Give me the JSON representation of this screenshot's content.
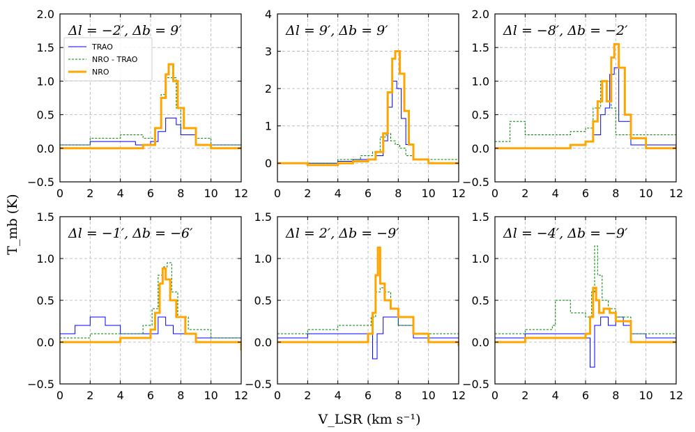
{
  "figure": {
    "ylabel": "T_mb (K)",
    "xlabel": "V_LSR (km s⁻¹)"
  },
  "colors": {
    "TRAO": "#0000ff",
    "NRO - TRAO": "#008000",
    "NRO": "#ffa500",
    "grid": "#b0b0b0"
  },
  "legend": {
    "placement": "upper-left (first panel)",
    "entries": [
      "TRAO",
      "NRO - TRAO",
      "NRO"
    ]
  },
  "chart_data": [
    {
      "type": "line",
      "annotation": "Δl = −2′, Δb = 9′",
      "xlim": [
        0,
        12
      ],
      "ylim": [
        -0.5,
        2.0
      ],
      "xticks": [
        0,
        2,
        4,
        6,
        8,
        10,
        12
      ],
      "yticks": [
        -0.5,
        0.0,
        0.5,
        1.0,
        1.5,
        2.0
      ],
      "ytick_labels": [
        "−0.5",
        "0.0",
        "0.5",
        "1.0",
        "1.5",
        "2.0"
      ],
      "grid": true,
      "series": [
        {
          "name": "TRAO",
          "x": [
            0,
            2,
            4,
            5,
            6,
            6.5,
            7,
            7.3,
            7.7,
            8,
            9,
            10,
            12
          ],
          "y": [
            0.05,
            0.1,
            0.1,
            0.05,
            0.1,
            0.25,
            0.45,
            0.45,
            0.35,
            0.2,
            0.05,
            0.05,
            0.05
          ]
        },
        {
          "name": "NRO - TRAO",
          "x": [
            0,
            2,
            4,
            5.5,
            6.3,
            6.7,
            7,
            7.3,
            7.7,
            8,
            9,
            10,
            12
          ],
          "y": [
            0.05,
            0.15,
            0.2,
            0.15,
            0.3,
            0.8,
            1.05,
            1.05,
            0.6,
            0.3,
            0.15,
            0.05,
            0.05
          ]
        },
        {
          "name": "NRO",
          "x": [
            0,
            2,
            4,
            5.5,
            6.3,
            6.7,
            7,
            7.2,
            7.5,
            7.8,
            8.2,
            9,
            10,
            12
          ],
          "y": [
            0.0,
            0.0,
            0.0,
            0.05,
            0.3,
            0.75,
            1.1,
            1.25,
            1.0,
            0.6,
            0.3,
            0.05,
            0.0,
            0.0
          ]
        }
      ]
    },
    {
      "type": "line",
      "annotation": "Δl = 9′, Δb = 9′",
      "xlim": [
        0,
        12
      ],
      "ylim": [
        -0.5,
        4.0
      ],
      "xticks": [
        0,
        2,
        4,
        6,
        8,
        10,
        12
      ],
      "yticks": [
        0,
        1,
        2,
        3,
        4
      ],
      "ytick_labels": [
        "0",
        "1",
        "2",
        "3",
        "4"
      ],
      "grid": true,
      "series": [
        {
          "name": "TRAO",
          "x": [
            0,
            2,
            4,
            5,
            6,
            6.5,
            7,
            7.3,
            7.6,
            7.9,
            8.2,
            8.5,
            9,
            10,
            12
          ],
          "y": [
            0.0,
            0.0,
            0.05,
            0.1,
            0.1,
            0.2,
            0.6,
            1.5,
            2.2,
            2.0,
            1.2,
            0.5,
            0.1,
            0.0,
            0.0
          ]
        },
        {
          "name": "NRO - TRAO",
          "x": [
            0,
            2,
            4,
            5.5,
            6.3,
            6.8,
            7.2,
            7.5,
            7.8,
            8.1,
            8.5,
            9,
            12
          ],
          "y": [
            0.0,
            0.0,
            0.1,
            0.2,
            0.3,
            0.7,
            0.8,
            0.6,
            0.5,
            0.4,
            0.2,
            0.1,
            0.0
          ]
        },
        {
          "name": "NRO",
          "x": [
            0,
            2,
            4,
            5,
            6,
            6.5,
            7,
            7.3,
            7.6,
            7.8,
            8.1,
            8.4,
            8.7,
            9,
            10,
            12
          ],
          "y": [
            0.0,
            -0.05,
            0.0,
            0.05,
            0.1,
            0.3,
            0.8,
            1.9,
            2.8,
            3.0,
            2.4,
            1.4,
            0.5,
            0.1,
            0.0,
            0.0
          ]
        }
      ]
    },
    {
      "type": "line",
      "annotation": "Δl = −8′, Δb = −2′",
      "xlim": [
        0,
        12
      ],
      "ylim": [
        -0.5,
        2.0
      ],
      "xticks": [
        0,
        2,
        4,
        6,
        8,
        10,
        12
      ],
      "yticks": [
        -0.5,
        0.0,
        0.5,
        1.0,
        1.5,
        2.0
      ],
      "ytick_labels": [
        "−0.5",
        "0.0",
        "0.5",
        "1.0",
        "1.5",
        "2.0"
      ],
      "grid": true,
      "series": [
        {
          "name": "TRAO",
          "x": [
            0,
            2,
            4,
            5,
            6,
            6.5,
            7,
            7.3,
            7.6,
            7.9,
            8.2,
            9,
            10,
            12
          ],
          "y": [
            0.0,
            0.0,
            0.0,
            0.05,
            0.1,
            0.2,
            0.5,
            0.6,
            1.1,
            1.2,
            0.4,
            0.05,
            0.05,
            0.1
          ]
        },
        {
          "name": "NRO - TRAO",
          "x": [
            0,
            1,
            2,
            4,
            5,
            6,
            6.5,
            7,
            7.3,
            7.7,
            8,
            9,
            12
          ],
          "y": [
            0.1,
            0.4,
            0.2,
            0.2,
            0.25,
            0.3,
            0.6,
            1.0,
            1.0,
            0.6,
            0.2,
            0.2,
            0.2
          ]
        },
        {
          "name": "NRO",
          "x": [
            0,
            2,
            4,
            5,
            6,
            6.5,
            6.8,
            7.1,
            7.4,
            7.7,
            7.9,
            8.2,
            8.6,
            9,
            10,
            12
          ],
          "y": [
            0.0,
            0.0,
            0.0,
            0.05,
            0.1,
            0.4,
            0.7,
            1.0,
            0.7,
            1.35,
            1.55,
            1.2,
            0.5,
            0.15,
            0.0,
            0.05
          ]
        }
      ]
    },
    {
      "type": "line",
      "annotation": "Δl = −1′, Δb = −6′",
      "xlim": [
        0,
        12
      ],
      "ylim": [
        -0.5,
        1.5
      ],
      "xticks": [
        0,
        2,
        4,
        6,
        8,
        10,
        12
      ],
      "yticks": [
        -0.5,
        0.0,
        0.5,
        1.0,
        1.5
      ],
      "ytick_labels": [
        "−0.5",
        "0.0",
        "0.5",
        "1.0",
        "1.5"
      ],
      "grid": true,
      "series": [
        {
          "name": "TRAO",
          "x": [
            0,
            1,
            2,
            3,
            4,
            5,
            6,
            6.5,
            7,
            7.5,
            8,
            9,
            10,
            12
          ],
          "y": [
            0.1,
            0.2,
            0.3,
            0.2,
            0.1,
            0.1,
            0.1,
            0.3,
            0.2,
            0.1,
            0.1,
            0.05,
            0.05,
            0.0
          ]
        },
        {
          "name": "NRO - TRAO",
          "x": [
            0,
            2,
            4,
            5.5,
            6.1,
            6.5,
            6.8,
            7.1,
            7.4,
            7.8,
            8.5,
            10,
            12
          ],
          "y": [
            0.05,
            0.1,
            0.1,
            0.2,
            0.4,
            0.8,
            0.9,
            0.95,
            0.6,
            0.3,
            0.15,
            0.05,
            0.0
          ]
        },
        {
          "name": "NRO",
          "x": [
            0,
            2,
            4,
            5,
            6,
            6.3,
            6.6,
            6.8,
            7.0,
            7.3,
            7.7,
            8.3,
            9,
            10,
            12
          ],
          "y": [
            0.0,
            0.0,
            0.05,
            0.05,
            0.15,
            0.35,
            0.7,
            0.88,
            0.75,
            0.5,
            0.3,
            0.1,
            0.0,
            0.0,
            -0.1
          ]
        }
      ]
    },
    {
      "type": "line",
      "annotation": "Δl = 2′, Δb = −9′",
      "xlim": [
        0,
        12
      ],
      "ylim": [
        -0.5,
        1.5
      ],
      "xticks": [
        0,
        2,
        4,
        6,
        8,
        10,
        12
      ],
      "yticks": [
        -0.5,
        0.0,
        0.5,
        1.0,
        1.5
      ],
      "ytick_labels": [
        "−0.5",
        "0.0",
        "0.5",
        "1.0",
        "1.5"
      ],
      "grid": true,
      "series": [
        {
          "name": "TRAO",
          "x": [
            0,
            2,
            4,
            5,
            6,
            6.3,
            6.6,
            7,
            7.5,
            8,
            9,
            10,
            12
          ],
          "y": [
            0.05,
            0.1,
            0.1,
            0.1,
            0.1,
            -0.2,
            0.1,
            0.3,
            0.3,
            0.2,
            0.05,
            0.05,
            0.0
          ]
        },
        {
          "name": "NRO - TRAO",
          "x": [
            0,
            2,
            4,
            5.5,
            6.2,
            6.5,
            6.8,
            7.1,
            7.5,
            8,
            9,
            12
          ],
          "y": [
            0.1,
            0.15,
            0.2,
            0.2,
            0.3,
            0.6,
            0.65,
            0.6,
            0.4,
            0.2,
            0.1,
            0.0
          ]
        },
        {
          "name": "NRO",
          "x": [
            0,
            2,
            4,
            5,
            6,
            6.3,
            6.5,
            6.65,
            6.8,
            7.1,
            7.5,
            8,
            9,
            10,
            12
          ],
          "y": [
            0.0,
            0.0,
            0.0,
            0.0,
            0.1,
            0.35,
            0.8,
            1.13,
            0.7,
            0.5,
            0.4,
            0.3,
            0.1,
            0.0,
            -0.05
          ]
        }
      ]
    },
    {
      "type": "line",
      "annotation": "Δl = −4′, Δb = −9′",
      "xlim": [
        0,
        12
      ],
      "ylim": [
        -0.5,
        1.5
      ],
      "xticks": [
        0,
        2,
        4,
        6,
        8,
        10,
        12
      ],
      "yticks": [
        -0.5,
        0.0,
        0.5,
        1.0,
        1.5
      ],
      "ytick_labels": [
        "−0.5",
        "0.0",
        "0.5",
        "1.0",
        "1.5"
      ],
      "grid": true,
      "series": [
        {
          "name": "TRAO",
          "x": [
            0,
            2,
            4,
            5,
            6,
            6.3,
            6.6,
            7,
            7.5,
            8,
            8.5,
            9,
            10,
            12
          ],
          "y": [
            0.05,
            0.1,
            0.1,
            0.1,
            0.05,
            -0.3,
            0.2,
            0.3,
            0.2,
            0.3,
            0.2,
            0.1,
            0.05,
            0.0
          ]
        },
        {
          "name": "NRO - TRAO",
          "x": [
            0,
            2,
            3.8,
            4,
            5,
            6,
            6.4,
            6.6,
            6.8,
            7.1,
            7.5,
            8,
            9,
            12
          ],
          "y": [
            0.1,
            0.15,
            0.2,
            0.5,
            0.35,
            0.3,
            0.6,
            1.15,
            0.8,
            0.5,
            0.4,
            0.3,
            0.1,
            0.0
          ]
        },
        {
          "name": "NRO",
          "x": [
            0,
            2,
            4,
            5,
            6,
            6.3,
            6.5,
            6.7,
            6.9,
            7.2,
            7.6,
            8,
            9,
            10,
            12
          ],
          "y": [
            0.0,
            0.05,
            0.05,
            0.05,
            0.1,
            0.3,
            0.65,
            0.5,
            0.35,
            0.4,
            0.35,
            0.25,
            0.0,
            0.0,
            0.0
          ]
        }
      ]
    }
  ]
}
